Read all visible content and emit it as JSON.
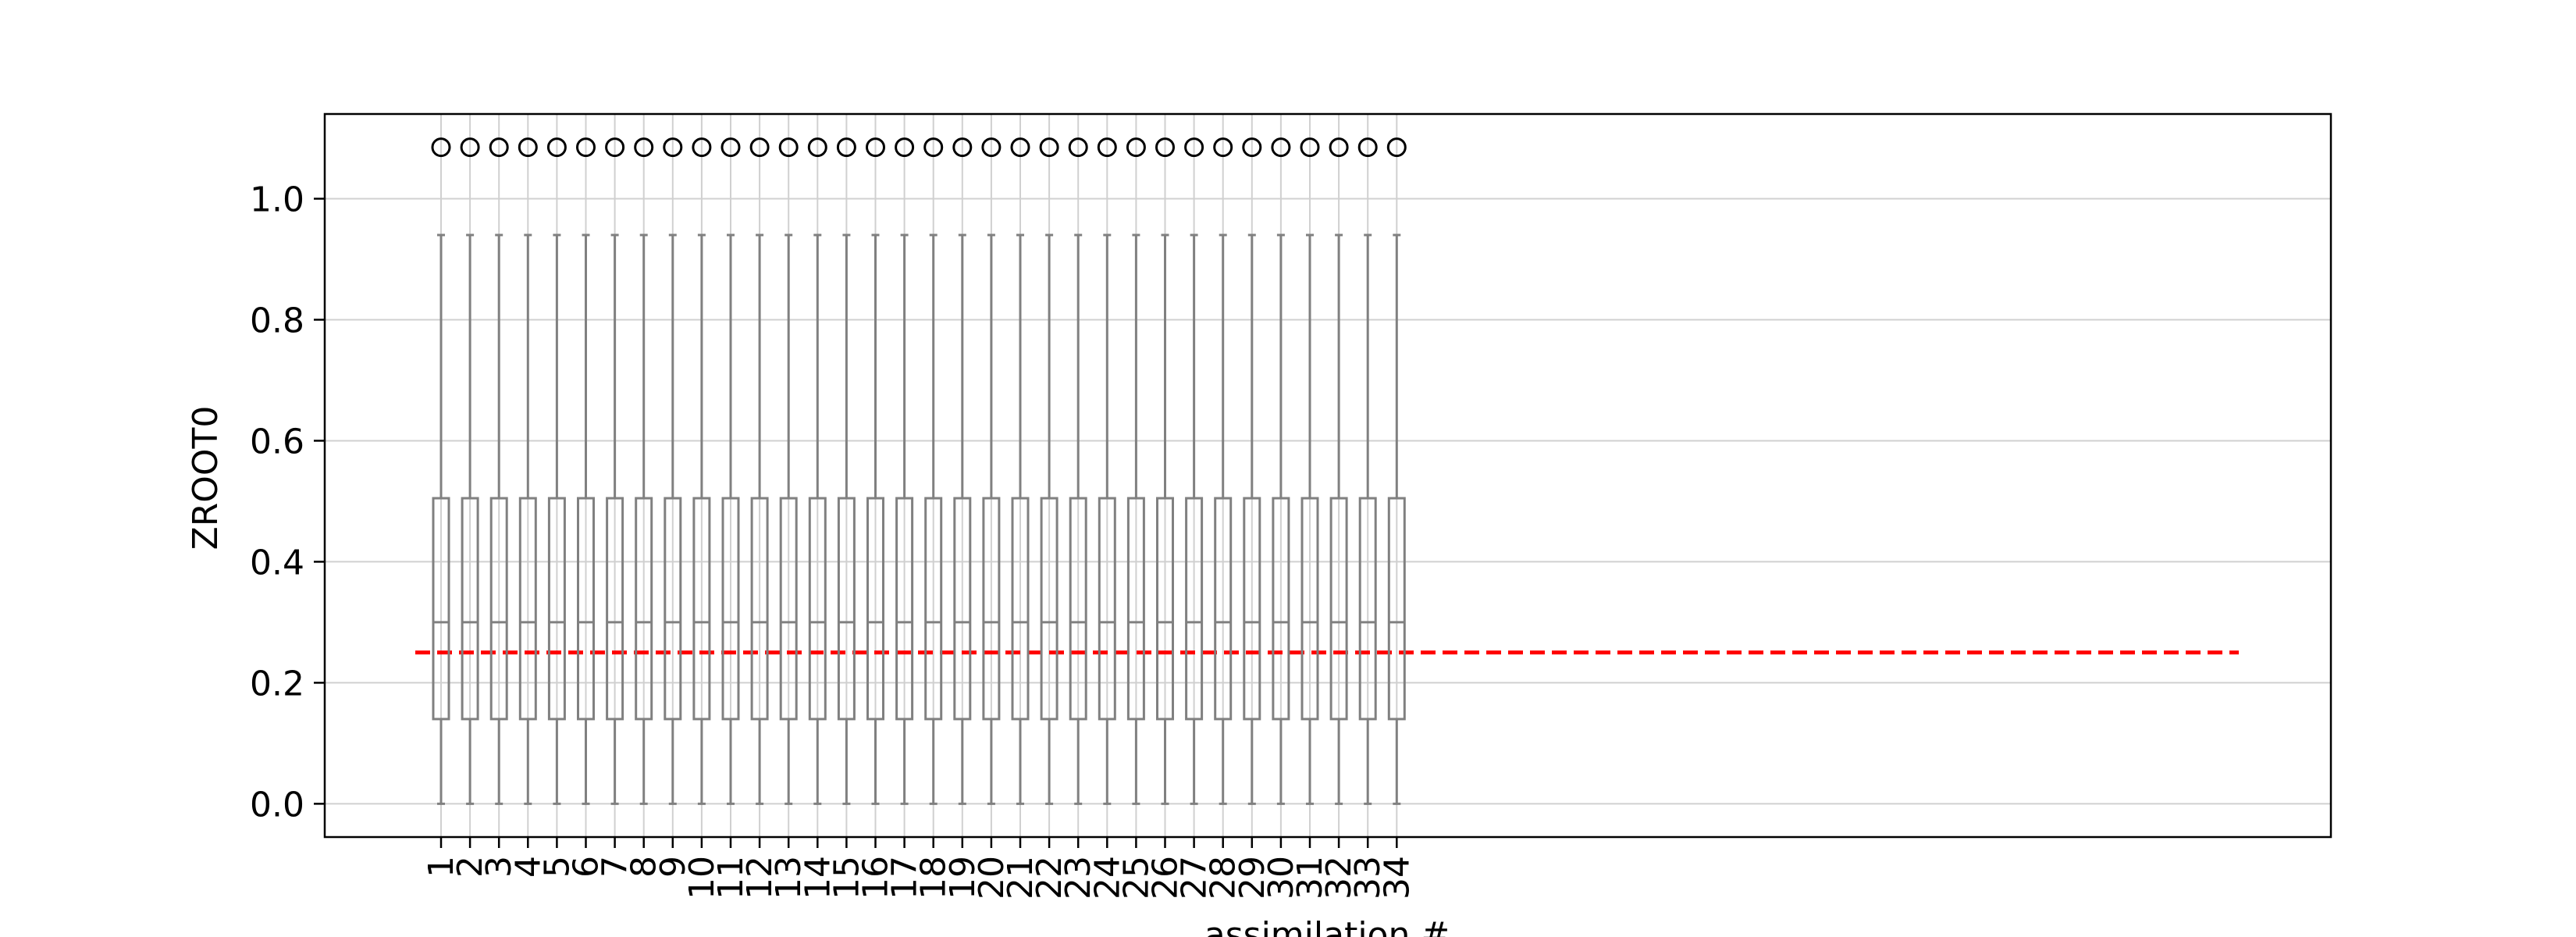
{
  "chart_data": {
    "type": "box",
    "title": "",
    "xlabel": "assimilation #",
    "ylabel": "ZROOT0",
    "categories": [
      "1",
      "2",
      "3",
      "4",
      "5",
      "6",
      "7",
      "8",
      "9",
      "10",
      "11",
      "12",
      "13",
      "14",
      "15",
      "16",
      "17",
      "18",
      "19",
      "20",
      "21",
      "22",
      "23",
      "24",
      "25",
      "26",
      "27",
      "28",
      "29",
      "30",
      "31",
      "32",
      "33",
      "34"
    ],
    "box_stats": {
      "whisker_low": 0.0,
      "q1": 0.14,
      "median": 0.3,
      "q3": 0.505,
      "whisker_high": 0.94,
      "outlier": 1.085
    },
    "reference_line": {
      "value": 0.25,
      "color": "#ff0000",
      "style": "dashed"
    },
    "ylim": [
      -0.055,
      1.14
    ],
    "yticks": [
      0.0,
      0.2,
      0.4,
      0.6,
      0.8,
      1.0
    ],
    "ytick_labels": [
      "0.0",
      "0.2",
      "0.4",
      "0.6",
      "0.8",
      "1.0"
    ],
    "grid": true,
    "box_color": "#808080"
  }
}
